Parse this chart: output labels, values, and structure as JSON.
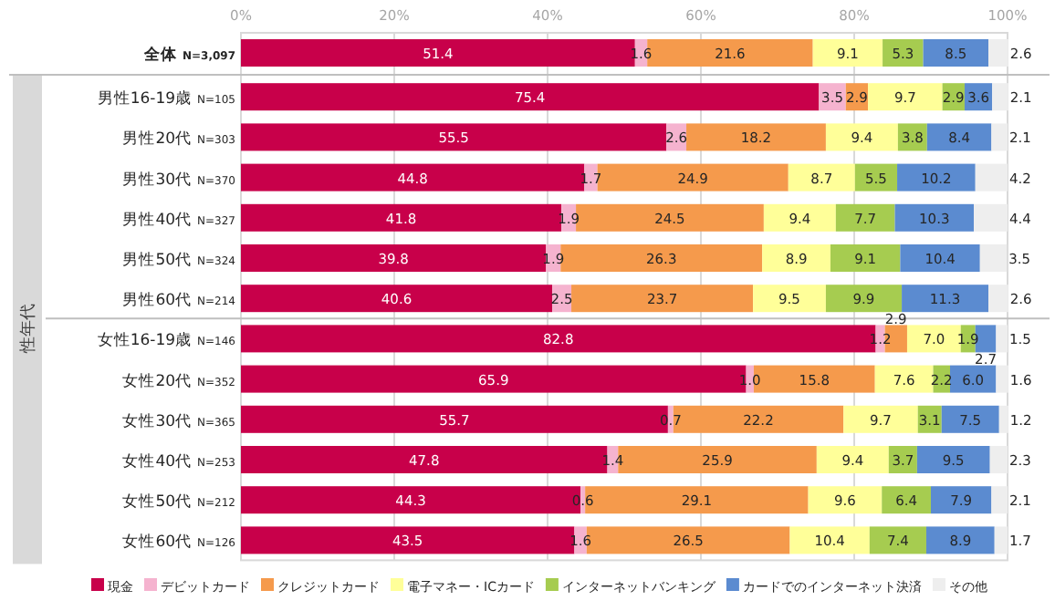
{
  "chart_data": {
    "type": "bar",
    "orientation": "horizontal",
    "stacked": true,
    "ylabel": "性年代",
    "categories": [
      "全体 N=3,097",
      "男性16-19歳 N=105",
      "男性20代 N=303",
      "男性30代 N=370",
      "男性40代 N=327",
      "男性50代 N=324",
      "男性60代 N=214",
      "女性16-19歳 N=146",
      "女性20代 N=352",
      "女性30代 N=365",
      "女性40代 N=253",
      "女性50代 N=212",
      "女性60代 N=126"
    ],
    "series": [
      {
        "name": "現金",
        "color": "#c8004a",
        "values": [
          51.4,
          75.4,
          55.5,
          44.8,
          41.8,
          39.8,
          40.6,
          82.8,
          65.9,
          55.7,
          47.8,
          44.3,
          43.5
        ]
      },
      {
        "name": "デビットカード",
        "color": "#f5b3cf",
        "values": [
          1.6,
          3.5,
          2.6,
          1.7,
          1.9,
          1.9,
          2.5,
          1.2,
          1.0,
          0.7,
          1.4,
          0.6,
          1.6
        ],
        "value_labels": [
          "1.6",
          "3.5",
          "2.6",
          "1.7",
          "1.9",
          "1.9",
          "2.5",
          "1.2",
          "1.0",
          "0.7",
          "1.4",
          "0.6",
          "1.6"
        ]
      },
      {
        "name": "クレジットカード",
        "color": "#f59a4c",
        "values": [
          21.6,
          2.9,
          18.2,
          24.9,
          24.5,
          26.3,
          23.7,
          2.9,
          15.8,
          22.2,
          25.9,
          29.1,
          26.5
        ]
      },
      {
        "name": "電子マネー・ICカード",
        "color": "#ffff99",
        "values": [
          9.1,
          9.7,
          9.4,
          8.7,
          9.4,
          8.9,
          9.5,
          7.0,
          7.6,
          9.7,
          9.4,
          9.6,
          10.4
        ],
        "value_labels": [
          "9.1",
          "9.7",
          "9.4",
          "8.7",
          "9.4",
          "8.9",
          "9.5",
          "7.0",
          "7.6",
          "9.7",
          "9.4",
          "9.6",
          "10.4"
        ]
      },
      {
        "name": "インターネットバンキング",
        "color": "#a6cc50",
        "values": [
          5.3,
          2.9,
          3.8,
          5.5,
          7.7,
          9.1,
          9.9,
          1.9,
          2.2,
          3.1,
          3.7,
          6.4,
          7.4
        ]
      },
      {
        "name": "カードでのインターネット決済",
        "color": "#5b8bd0",
        "values": [
          8.5,
          3.6,
          8.4,
          10.2,
          10.3,
          10.4,
          11.3,
          2.7,
          6.0,
          7.5,
          9.5,
          7.9,
          8.9
        ],
        "value_labels": [
          "8.5",
          "3.6",
          "8.4",
          "10.2",
          "10.3",
          "10.4",
          "11.3",
          "2.7",
          "6.0",
          "7.5",
          "9.5",
          "7.9",
          "8.9"
        ]
      },
      {
        "name": "その他",
        "color": "#eeeeee",
        "values": [
          2.6,
          2.1,
          2.1,
          4.2,
          4.4,
          3.5,
          2.6,
          1.5,
          1.6,
          1.2,
          2.3,
          2.1,
          1.7
        ]
      }
    ],
    "xlim": [
      0,
      100
    ],
    "xticks": [
      {
        "value": 0,
        "label": "0%"
      },
      {
        "value": 20,
        "label": "20%"
      },
      {
        "value": 40,
        "label": "40%"
      },
      {
        "value": 60,
        "label": "60%"
      },
      {
        "value": 80,
        "label": "80%"
      },
      {
        "value": 100,
        "label": "100%"
      }
    ],
    "grid": "x",
    "legend": "bottom",
    "data_labels": true
  }
}
